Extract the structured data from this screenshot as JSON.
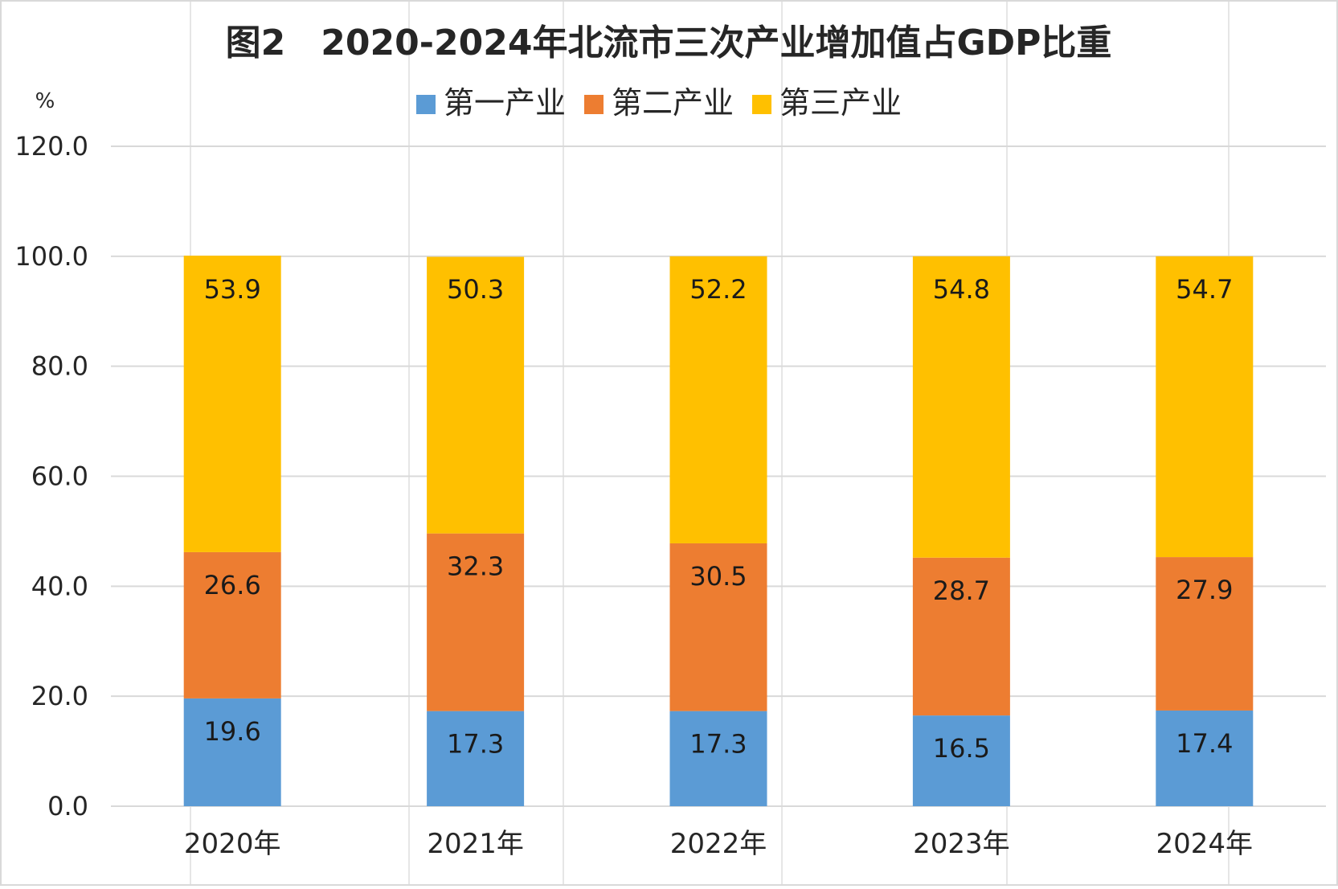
{
  "chart_data": {
    "type": "bar",
    "stacked": true,
    "title": "图2　2020-2024年北流市三次产业增加值占GDP比重",
    "unit": "%",
    "categories": [
      "2020年",
      "2021年",
      "2022年",
      "2023年",
      "2024年"
    ],
    "series": [
      {
        "name": "第一产业",
        "color": "#5b9bd5",
        "values": [
          19.6,
          17.3,
          17.3,
          16.5,
          17.4
        ]
      },
      {
        "name": "第二产业",
        "color": "#ed7d31",
        "values": [
          26.6,
          32.3,
          30.5,
          28.7,
          27.9
        ]
      },
      {
        "name": "第三产业",
        "color": "#ffc000",
        "values": [
          53.9,
          50.3,
          52.2,
          54.8,
          54.7
        ]
      }
    ],
    "ylim": [
      0,
      120
    ],
    "yticks": [
      "0.0",
      "20.0",
      "40.0",
      "60.0",
      "80.0",
      "100.0",
      "120.0"
    ],
    "grid": true,
    "legend_position": "top"
  }
}
